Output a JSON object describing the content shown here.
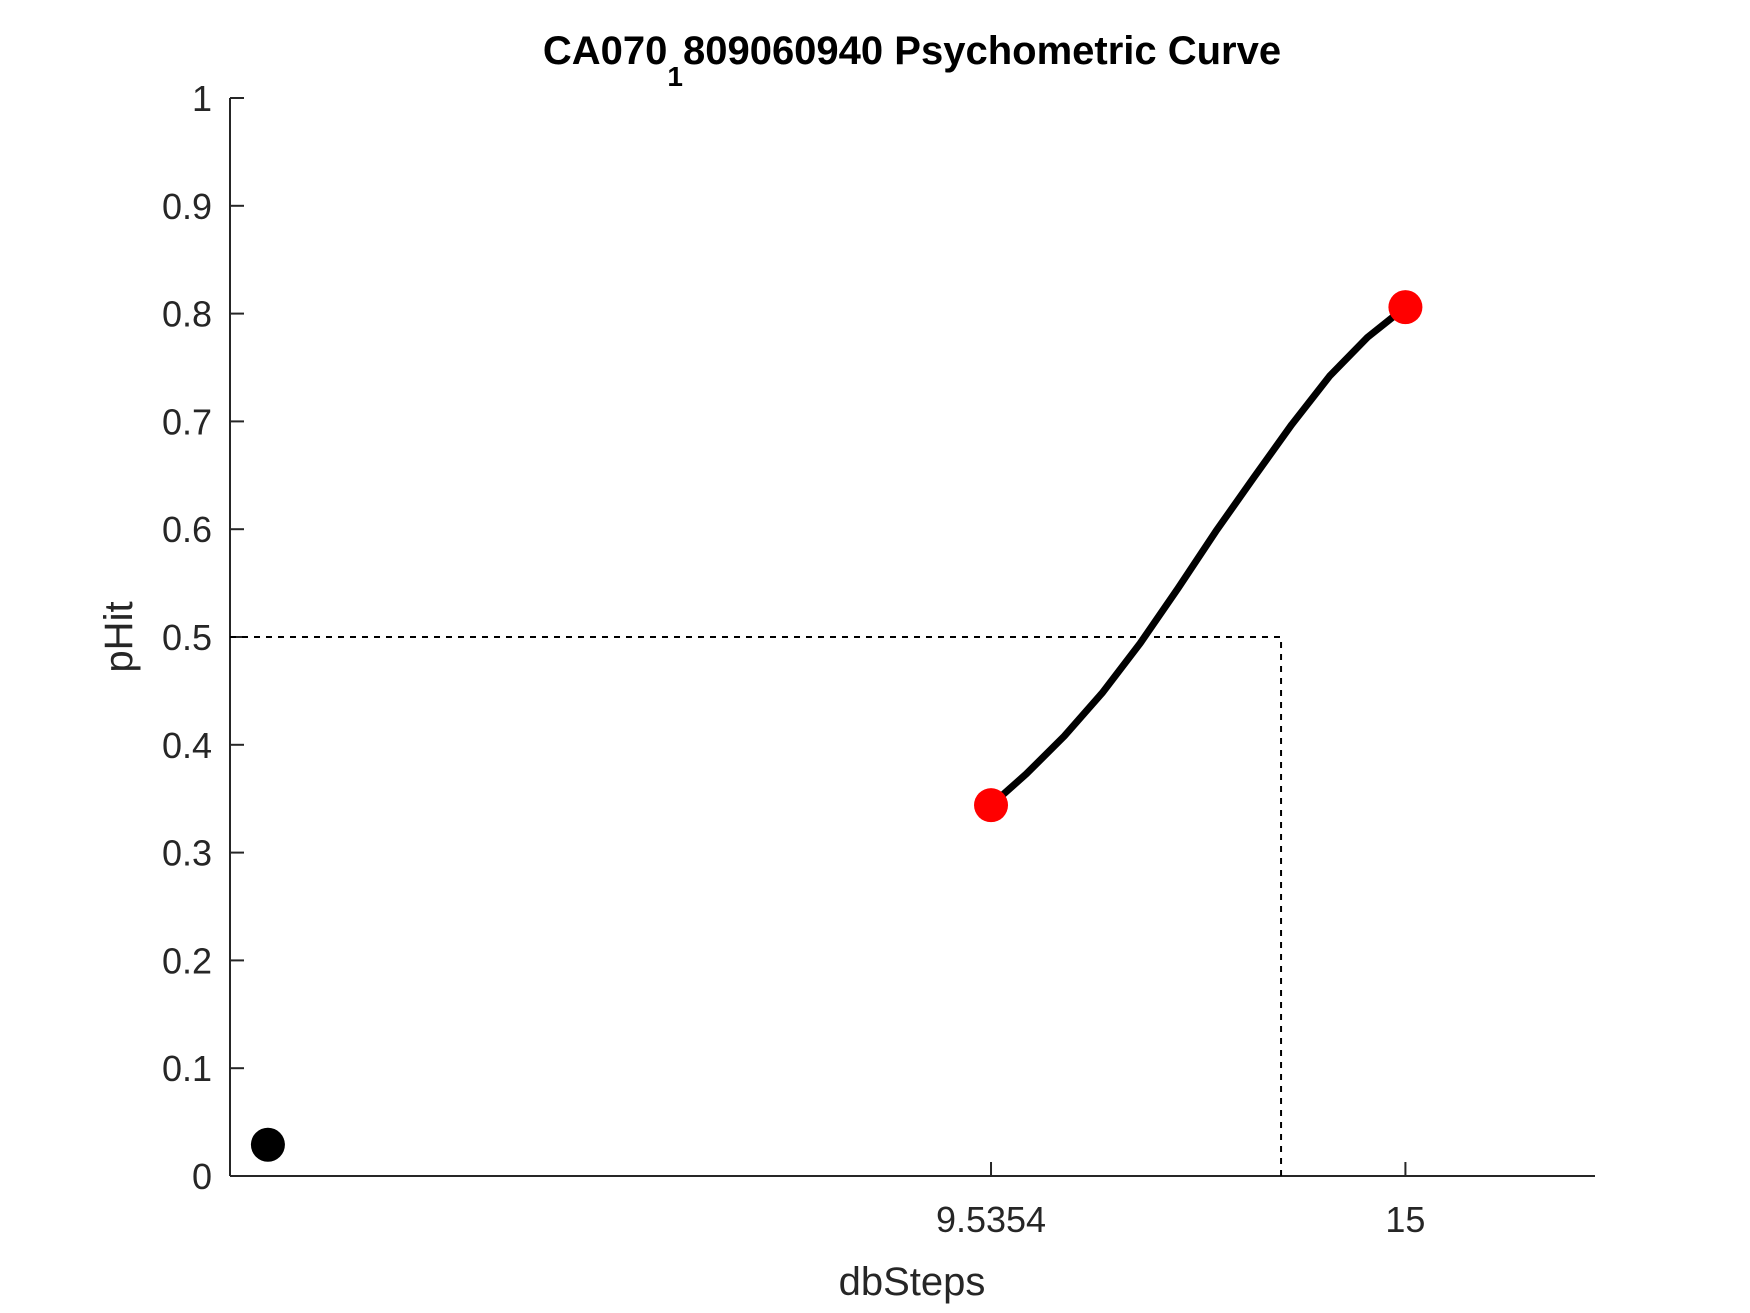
{
  "chart_data": {
    "type": "scatter",
    "title": {
      "prefix": "CA070",
      "subscript": "1",
      "suffix": "809060940 Psychometric Curve"
    },
    "xlabel": "dbSteps",
    "ylabel": "pHit",
    "xlim": [
      -0.5,
      17.5
    ],
    "ylim": [
      0,
      1
    ],
    "x_ticks": [
      {
        "value": 9.5354,
        "label": "9.5354"
      },
      {
        "value": 15,
        "label": "15"
      }
    ],
    "y_ticks": [
      {
        "value": 0,
        "label": "0"
      },
      {
        "value": 0.1,
        "label": "0.1"
      },
      {
        "value": 0.2,
        "label": "0.2"
      },
      {
        "value": 0.3,
        "label": "0.3"
      },
      {
        "value": 0.4,
        "label": "0.4"
      },
      {
        "value": 0.5,
        "label": "0.5"
      },
      {
        "value": 0.6,
        "label": "0.6"
      },
      {
        "value": 0.7,
        "label": "0.7"
      },
      {
        "value": 0.8,
        "label": "0.8"
      },
      {
        "value": 0.9,
        "label": "0.9"
      },
      {
        "value": 1,
        "label": "1"
      }
    ],
    "points": [
      {
        "x": 0,
        "y": 0.029,
        "color": "#000000"
      },
      {
        "x": 9.5354,
        "y": 0.344,
        "color": "#ff0000"
      },
      {
        "x": 15,
        "y": 0.806,
        "color": "#ff0000"
      }
    ],
    "fit_curve": {
      "color": "#000000",
      "x": [
        9.5354,
        10.0,
        10.5,
        11.0,
        11.5,
        12.0,
        12.5,
        13.0,
        13.5,
        14.0,
        14.5,
        15.0
      ],
      "y": [
        0.344,
        0.373,
        0.408,
        0.448,
        0.494,
        0.545,
        0.598,
        0.648,
        0.697,
        0.742,
        0.778,
        0.806
      ]
    },
    "threshold": {
      "x": 13.36,
      "y": 0.5,
      "style": "dashed",
      "color": "#000000"
    },
    "grid": false,
    "box": false
  }
}
